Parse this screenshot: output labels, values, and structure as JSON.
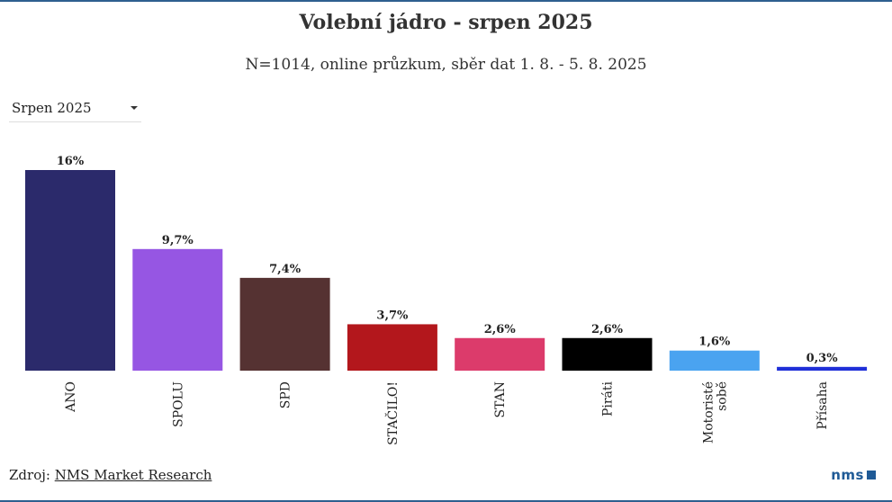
{
  "title": "Volební jádro - srpen 2025",
  "subtitle": "N=1014, online průzkum, sběr dat 1. 8. - 5. 8. 2025",
  "selector": {
    "selected": "Srpen 2025"
  },
  "footer": {
    "source_prefix": "Zdroj: ",
    "source_link": "NMS Market Research",
    "logo": "nms"
  },
  "colors": {
    "frame": "#2f5f8f",
    "logo": "#1f5a96"
  },
  "chart_data": {
    "type": "bar",
    "categories": [
      "ANO",
      "SPOLU",
      "SPD",
      "STAČILO!",
      "STAN",
      "Piráti",
      "Motoristé sobě",
      "Přísaha"
    ],
    "category_lines": [
      [
        "ANO"
      ],
      [
        "SPOLU"
      ],
      [
        "SPD"
      ],
      [
        "STAČILO!"
      ],
      [
        "STAN"
      ],
      [
        "Piráti"
      ],
      [
        "Motoristé",
        "sobě"
      ],
      [
        "Přísaha"
      ]
    ],
    "values": [
      16,
      9.7,
      7.4,
      3.7,
      2.6,
      2.6,
      1.6,
      0.3
    ],
    "labels": [
      "16%",
      "9,7%",
      "7,4%",
      "3,7%",
      "2,6%",
      "2,6%",
      "1,6%",
      "0,3%"
    ],
    "colors": [
      "#2b2a6b",
      "#9656e3",
      "#553232",
      "#b3171c",
      "#dc3b6b",
      "#000000",
      "#4aa3f0",
      "#1f2fd8"
    ],
    "title": "Volební jádro - srpen 2025",
    "xlabel": "",
    "ylabel": "",
    "ylim": [
      0,
      16
    ],
    "grid": false,
    "legend": "none"
  }
}
